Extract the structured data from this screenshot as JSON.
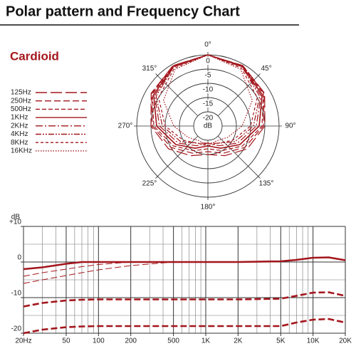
{
  "title": "Polar pattern and Frequency Chart",
  "chart_data": [
    {
      "type": "polar",
      "subtitle": "Cardioid",
      "theta": [
        0,
        30,
        60,
        90,
        120,
        150,
        180,
        210,
        240,
        270,
        300,
        330
      ],
      "rlim": [
        -25,
        0
      ],
      "rticks": [
        0,
        -5,
        -10,
        -15,
        -20
      ],
      "r_label": "dB",
      "thetaticks": [
        {
          "value": 0,
          "label": "0°"
        },
        {
          "value": 45,
          "label": "45°"
        },
        {
          "value": 90,
          "label": "90°"
        },
        {
          "value": 135,
          "label": "135°"
        },
        {
          "value": 180,
          "label": "180°"
        },
        {
          "value": 225,
          "label": "225°"
        },
        {
          "value": 270,
          "label": "270°"
        },
        {
          "value": 315,
          "label": "315°"
        }
      ],
      "series": [
        {
          "name": "125Hz",
          "color": "#a3161c",
          "style": "long-dash",
          "values": [
            0,
            -0.5,
            -2,
            -5,
            -9,
            -13,
            -15,
            -13,
            -9,
            -5,
            -2,
            -0.5
          ]
        },
        {
          "name": "250Hz",
          "color": "#a3161c",
          "style": "dash",
          "values": [
            0,
            -0.5,
            -2.2,
            -5.5,
            -10,
            -14,
            -16,
            -14,
            -10,
            -5.5,
            -2.2,
            -0.5
          ]
        },
        {
          "name": "500Hz",
          "color": "#a3161c",
          "style": "medium-dash",
          "values": [
            0,
            -0.6,
            -2.5,
            -6,
            -11,
            -15,
            -17,
            -15,
            -11,
            -6,
            -2.5,
            -0.6
          ]
        },
        {
          "name": "1KHz",
          "color": "#a3161c",
          "style": "solid",
          "values": [
            0,
            -0.8,
            -3,
            -7,
            -12,
            -16,
            -18,
            -16,
            -12,
            -7,
            -3,
            -0.8
          ]
        },
        {
          "name": "2KHz",
          "color": "#a3161c",
          "style": "dash-dot",
          "values": [
            0,
            -1,
            -3.5,
            -8,
            -13,
            -17,
            -19,
            -17,
            -13,
            -8,
            -3.5,
            -1
          ]
        },
        {
          "name": "4KHz",
          "color": "#a3161c",
          "style": "dash-dot-dot",
          "values": [
            0,
            -1,
            -4,
            -9,
            -14,
            -18,
            -19,
            -18,
            -14,
            -9,
            -4,
            -1
          ]
        },
        {
          "name": "8KHz",
          "color": "#a3161c",
          "style": "short-dash",
          "values": [
            0,
            -1.5,
            -5,
            -10,
            -15,
            -18,
            -18,
            -18,
            -15,
            -10,
            -5,
            -1.5
          ]
        },
        {
          "name": "16KHz",
          "color": "#a3161c",
          "style": "dot",
          "values": [
            0,
            -2,
            -7,
            -13,
            -17,
            -19,
            -18,
            -19,
            -17,
            -13,
            -7,
            -2
          ]
        }
      ]
    },
    {
      "type": "line",
      "ylabel": "dB",
      "log_x": true,
      "x": [
        20,
        30,
        50,
        70,
        100,
        200,
        500,
        1000,
        2000,
        5000,
        7000,
        10000,
        14000,
        20000
      ],
      "xlim": [
        20,
        20000
      ],
      "xticks": [
        {
          "value": 20,
          "label": "20Hz"
        },
        50,
        100,
        200,
        500,
        {
          "value": 1000,
          "label": "1K"
        },
        {
          "value": 2000,
          "label": "2K"
        },
        {
          "value": 5000,
          "label": "5K"
        },
        {
          "value": 10000,
          "label": "10K"
        },
        {
          "value": 20000,
          "label": "20K"
        }
      ],
      "xminorticks": [
        30,
        40,
        60,
        70,
        80,
        90,
        300,
        400,
        600,
        700,
        800,
        900,
        3000,
        4000,
        6000,
        7000,
        8000,
        9000
      ],
      "ylim": [
        -20,
        10
      ],
      "yticks": [
        {
          "value": 10,
          "label": "+10"
        },
        0,
        -10,
        -20
      ],
      "yminorticks": [
        5,
        -5,
        -15
      ],
      "series": [
        {
          "color": "#a3161c",
          "style": "solid",
          "width": "thick",
          "values": [
            -2,
            -1.5,
            -0.5,
            0,
            0,
            0,
            0,
            0,
            0,
            0.2,
            0.6,
            1.2,
            1.3,
            0.5
          ]
        },
        {
          "color": "#a3161c",
          "style": "dash",
          "width": "thin",
          "values": [
            -4,
            -3,
            -2,
            -1.3,
            -0.7,
            0,
            0,
            0,
            0,
            0.2,
            0.6,
            1.2,
            1.3,
            0.5
          ]
        },
        {
          "color": "#a3161c",
          "style": "dash",
          "width": "thin",
          "values": [
            -6,
            -5,
            -3.8,
            -3,
            -2.2,
            -1,
            0,
            0,
            0,
            0.2,
            0.6,
            1.2,
            1.3,
            0.5
          ]
        },
        {
          "color": "#a3161c",
          "style": "dash",
          "width": "thick",
          "values": [
            -12.5,
            -11.5,
            -10.8,
            -10.6,
            -10.5,
            -10.5,
            -10.5,
            -10.5,
            -10.5,
            -10.3,
            -9.5,
            -8.6,
            -8.5,
            -9.5
          ]
        },
        {
          "color": "#a3161c",
          "style": "dash",
          "width": "thick",
          "values": [
            -20,
            -19,
            -18.3,
            -18.1,
            -18,
            -18,
            -18,
            -18,
            -18,
            -18,
            -17,
            -16.2,
            -16,
            -17
          ]
        }
      ]
    }
  ]
}
